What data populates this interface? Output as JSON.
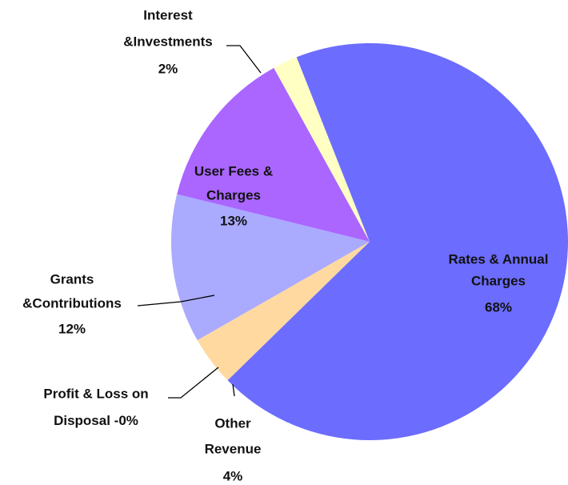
{
  "chart_data": {
    "type": "pie",
    "categories": [
      [
        "Rates & Annual",
        "Charges"
      ],
      [
        "Other",
        "Revenue"
      ],
      [
        "Profit & Loss on",
        "Disposal"
      ],
      [
        "Grants",
        "&Contributions"
      ],
      [
        "User Fees &",
        "Charges"
      ],
      [
        "Interest",
        "&Investments"
      ]
    ],
    "values": [
      68,
      4,
      0,
      12,
      13,
      2
    ],
    "value_labels": [
      "68%",
      "4%",
      "-0%",
      "12%",
      "13%",
      "2%"
    ],
    "colors": [
      "#6c6cff",
      "#ffd9a0",
      "#ffd9a0",
      "#aaaaff",
      "#aa66ff",
      "#ffffc4"
    ]
  }
}
